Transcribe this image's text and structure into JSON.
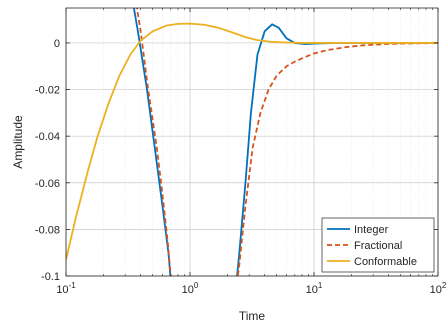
{
  "chart_data": {
    "type": "line",
    "xlabel": "Time",
    "ylabel": "Amplitude",
    "xscale": "log",
    "xlim": [
      0.1,
      100
    ],
    "ylim": [
      -0.1,
      0.015
    ],
    "grid": true,
    "legend_position": "bottom-right",
    "x_ticks": [
      {
        "value": 0.1,
        "base": "10",
        "exp": "-1"
      },
      {
        "value": 1,
        "base": "10",
        "exp": "0"
      },
      {
        "value": 10,
        "base": "10",
        "exp": "1"
      },
      {
        "value": 100,
        "base": "10",
        "exp": "2"
      }
    ],
    "y_ticks": [
      {
        "value": 0,
        "label": "0"
      },
      {
        "value": -0.02,
        "label": "-0.02"
      },
      {
        "value": -0.04,
        "label": "-0.04"
      },
      {
        "value": -0.06,
        "label": "-0.06"
      },
      {
        "value": -0.08,
        "label": "-0.08"
      },
      {
        "value": -0.1,
        "label": "-0.1"
      }
    ],
    "series": [
      {
        "name": "Integer",
        "color": "#0072BD",
        "dash": "solid",
        "points": [
          [
            0.34,
            0.02
          ],
          [
            0.38,
            0.005
          ],
          [
            0.45,
            -0.02
          ],
          [
            0.52,
            -0.045
          ],
          [
            0.6,
            -0.07
          ],
          [
            0.67,
            -0.09
          ],
          [
            0.72,
            -0.11
          ],
          [
            2.3,
            -0.11
          ],
          [
            2.5,
            -0.09
          ],
          [
            2.8,
            -0.06
          ],
          [
            3.1,
            -0.03
          ],
          [
            3.5,
            -0.005
          ],
          [
            4.0,
            0.005
          ],
          [
            4.6,
            0.008
          ],
          [
            5.2,
            0.0065
          ],
          [
            6.0,
            0.002
          ],
          [
            7.0,
            0.0
          ],
          [
            8.5,
            -0.0005
          ],
          [
            10,
            -0.0003
          ],
          [
            15,
            0.0
          ],
          [
            30,
            0.0
          ],
          [
            100,
            0.0
          ]
        ]
      },
      {
        "name": "Fractional",
        "color": "#D95319",
        "dash": "dashed",
        "points": [
          [
            0.36,
            0.02
          ],
          [
            0.4,
            0.005
          ],
          [
            0.46,
            -0.02
          ],
          [
            0.54,
            -0.045
          ],
          [
            0.6,
            -0.065
          ],
          [
            0.66,
            -0.085
          ],
          [
            0.7,
            -0.1
          ],
          [
            0.72,
            -0.11
          ],
          [
            2.3,
            -0.11
          ],
          [
            2.5,
            -0.095
          ],
          [
            2.8,
            -0.07
          ],
          [
            3.2,
            -0.045
          ],
          [
            3.7,
            -0.03
          ],
          [
            4.3,
            -0.02
          ],
          [
            5.0,
            -0.014
          ],
          [
            6.0,
            -0.01
          ],
          [
            7.0,
            -0.008
          ],
          [
            8.5,
            -0.006
          ],
          [
            10,
            -0.0045
          ],
          [
            13,
            -0.003
          ],
          [
            18,
            -0.0018
          ],
          [
            25,
            -0.001
          ],
          [
            40,
            -0.0004
          ],
          [
            60,
            -0.0002
          ],
          [
            100,
            0.0
          ]
        ]
      },
      {
        "name": "Conformable",
        "color": "#EDB120",
        "dash": "solid",
        "points": [
          [
            0.1,
            -0.093
          ],
          [
            0.12,
            -0.075
          ],
          [
            0.15,
            -0.055
          ],
          [
            0.18,
            -0.04
          ],
          [
            0.22,
            -0.026
          ],
          [
            0.27,
            -0.014
          ],
          [
            0.33,
            -0.005
          ],
          [
            0.4,
            0.001
          ],
          [
            0.5,
            0.005
          ],
          [
            0.65,
            0.0075
          ],
          [
            0.8,
            0.0082
          ],
          [
            1.0,
            0.0083
          ],
          [
            1.3,
            0.0078
          ],
          [
            1.7,
            0.0065
          ],
          [
            2.2,
            0.0045
          ],
          [
            2.8,
            0.0025
          ],
          [
            3.5,
            0.0012
          ],
          [
            4.5,
            0.0005
          ],
          [
            6,
            0.0002
          ],
          [
            8,
            0.0
          ],
          [
            20,
            0.0
          ],
          [
            100,
            0.0
          ]
        ]
      }
    ]
  }
}
